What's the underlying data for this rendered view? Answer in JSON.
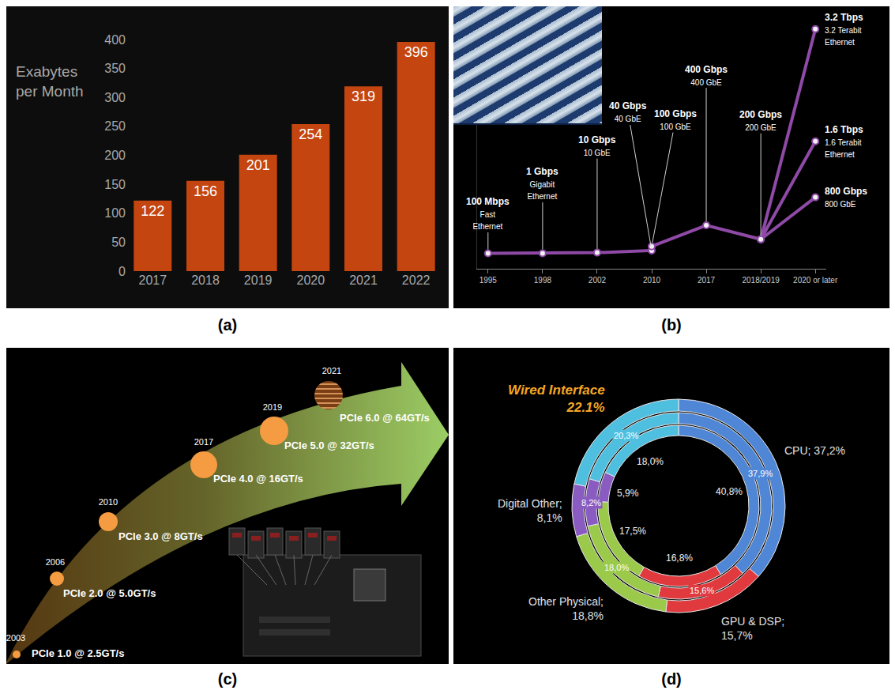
{
  "chart_data": [
    {
      "label": "(a)",
      "type": "bar",
      "y_label": "Exabytes per Month",
      "categories": [
        "2017",
        "2018",
        "2019",
        "2020",
        "2021",
        "2022"
      ],
      "values": [
        122,
        156,
        201,
        254,
        319,
        396
      ],
      "color": "#c4450f",
      "ylim": [
        0,
        400
      ],
      "yticks": [
        0,
        50,
        100,
        150,
        200,
        250,
        300,
        350,
        400
      ],
      "grid": false,
      "data_labels": true
    },
    {
      "label": "(b)",
      "type": "line",
      "categories": [
        "1995",
        "1998",
        "2002",
        "2010",
        "2017",
        "2018/2019",
        "2020 or later"
      ],
      "points": [
        {
          "x": "1995",
          "value": 0.1,
          "label": "100 Mbps",
          "note": "Fast Ethernet"
        },
        {
          "x": "1998",
          "value": 1,
          "label": "1 Gbps",
          "note": "Gigabit Ethernet"
        },
        {
          "x": "2002",
          "value": 10,
          "label": "10 Gbps",
          "note": "10 GbE"
        },
        {
          "x": "2010",
          "value": 40,
          "label": "40 Gbps",
          "note": "40 GbE"
        },
        {
          "x": "2010",
          "value": 100,
          "label": "100 Gbps",
          "note": "100 GbE"
        },
        {
          "x": "2017",
          "value": 400,
          "label": "400 Gbps",
          "note": "400 GbE"
        },
        {
          "x": "2018/2019",
          "value": 200,
          "label": "200 Gbps",
          "note": "200 GbE"
        },
        {
          "x": "2020 or later",
          "value": 3200,
          "label": "3.2 Tbps",
          "note": "3.2 Terabit Ethernet"
        },
        {
          "x": "2020 or later",
          "value": 1600,
          "label": "1.6 Tbps",
          "note": "1.6 Terabit Ethernet"
        },
        {
          "x": "2020 or later",
          "value": 800,
          "label": "800 Gbps",
          "note": "800 GbE"
        }
      ],
      "color": "#8e4aa6",
      "ylim": [
        -220,
        3300
      ],
      "tick_labels": "x",
      "marker": "circle"
    },
    {
      "label": "(d)",
      "type": "donut",
      "colors": [
        "#4f86d6",
        "#e0393e",
        "#9bc94a",
        "#8a5cc2",
        "#4fbfe0"
      ],
      "rings": [
        {
          "values": [
            37.2,
            15.7,
            18.8,
            8.1,
            22.1
          ],
          "value_labels": [
            "CPU; 37,2%",
            "GPU & DSP; 15,7%",
            "Other Physical; 18,8%",
            "Digital Other; 8,1%",
            "Wired Interface 22.1%"
          ]
        },
        {
          "values": [
            37.9,
            15.6,
            18.0,
            8.2,
            20.3
          ],
          "value_labels": [
            "37,9%",
            "15,6%",
            "18,0%",
            "8,2%",
            "20,3%"
          ]
        },
        {
          "values": [
            40.8,
            16.8,
            17.5,
            5.9,
            18.0
          ],
          "value_labels": [
            "40,8%",
            "16,8%",
            "17,5%",
            "5,9%",
            "18,0%"
          ]
        }
      ]
    }
  ],
  "diagram": {
    "label": "(c)",
    "milestones": [
      {
        "year": "2003",
        "text": "PCIe 1.0 @ 2.5GT/s"
      },
      {
        "year": "2006",
        "text": "PCIe 2.0 @ 5.0GT/s"
      },
      {
        "year": "2010",
        "text": "PCIe 3.0 @ 8GT/s"
      },
      {
        "year": "2017",
        "text": "PCIe 4.0 @ 16GT/s"
      },
      {
        "year": "2019",
        "text": "PCIe 5.0 @ 32GT/s"
      },
      {
        "year": "2021",
        "text": "PCIe 6.0 @ 64GT/s"
      }
    ]
  }
}
